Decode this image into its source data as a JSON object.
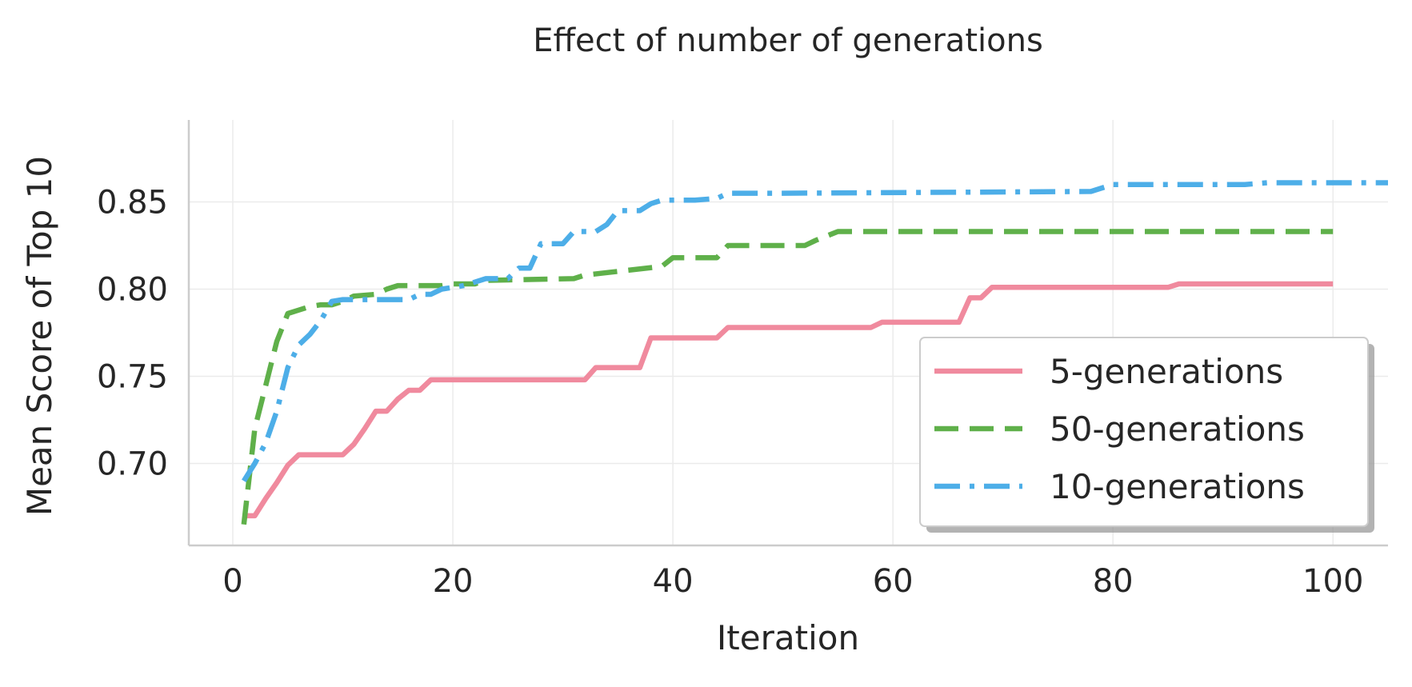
{
  "chart_data": {
    "type": "line",
    "title": "Effect of number of generations",
    "xlabel": "Iteration",
    "ylabel": "Mean Score of Top 10",
    "xlim": [
      -4,
      105
    ],
    "ylim": [
      0.653,
      0.897
    ],
    "xticks": [
      0,
      20,
      40,
      60,
      80,
      100
    ],
    "yticks": [
      0.7,
      0.75,
      0.8,
      0.85
    ],
    "xtick_labels": [
      "0",
      "20",
      "40",
      "60",
      "80",
      "100"
    ],
    "ytick_labels": [
      "0.70",
      "0.75",
      "0.80",
      "0.85"
    ],
    "grid": true,
    "legend_position": "lower-right",
    "series": [
      {
        "name": "5-generations",
        "color": "#f08a9e",
        "dash": "solid",
        "points": [
          [
            1,
            0.67
          ],
          [
            2,
            0.67
          ],
          [
            3,
            0.68
          ],
          [
            4,
            0.689
          ],
          [
            5,
            0.699
          ],
          [
            6,
            0.705
          ],
          [
            10,
            0.705
          ],
          [
            11,
            0.711
          ],
          [
            12,
            0.72
          ],
          [
            13,
            0.73
          ],
          [
            14,
            0.73
          ],
          [
            15,
            0.737
          ],
          [
            16,
            0.742
          ],
          [
            17,
            0.742
          ],
          [
            18,
            0.748
          ],
          [
            31,
            0.748
          ],
          [
            32,
            0.748
          ],
          [
            33,
            0.755
          ],
          [
            37,
            0.755
          ],
          [
            38,
            0.772
          ],
          [
            44,
            0.772
          ],
          [
            45,
            0.778
          ],
          [
            58,
            0.778
          ],
          [
            59,
            0.781
          ],
          [
            66,
            0.781
          ],
          [
            67,
            0.795
          ],
          [
            68,
            0.795
          ],
          [
            69,
            0.801
          ],
          [
            85,
            0.801
          ],
          [
            86,
            0.803
          ],
          [
            100,
            0.803
          ]
        ]
      },
      {
        "name": "50-generations",
        "color": "#5fb04a",
        "dash": "dashed",
        "points": [
          [
            1,
            0.665
          ],
          [
            2,
            0.72
          ],
          [
            3,
            0.745
          ],
          [
            4,
            0.77
          ],
          [
            5,
            0.786
          ],
          [
            6,
            0.788
          ],
          [
            7,
            0.79
          ],
          [
            8,
            0.791
          ],
          [
            9,
            0.791
          ],
          [
            10,
            0.793
          ],
          [
            11,
            0.796
          ],
          [
            13,
            0.797
          ],
          [
            14,
            0.8
          ],
          [
            15,
            0.802
          ],
          [
            19,
            0.802
          ],
          [
            20,
            0.803
          ],
          [
            22,
            0.803
          ],
          [
            23,
            0.805
          ],
          [
            31,
            0.806
          ],
          [
            32,
            0.808
          ],
          [
            39,
            0.813
          ],
          [
            40,
            0.818
          ],
          [
            44,
            0.818
          ],
          [
            45,
            0.825
          ],
          [
            52,
            0.825
          ],
          [
            53,
            0.828
          ],
          [
            55,
            0.833
          ],
          [
            99,
            0.833
          ],
          [
            100,
            0.833
          ]
        ]
      },
      {
        "name": "10-generations",
        "color": "#4daee8",
        "dash": "dashdot",
        "points": [
          [
            1,
            0.69
          ],
          [
            2,
            0.7
          ],
          [
            3,
            0.712
          ],
          [
            4,
            0.73
          ],
          [
            5,
            0.755
          ],
          [
            6,
            0.768
          ],
          [
            7,
            0.774
          ],
          [
            8,
            0.782
          ],
          [
            9,
            0.793
          ],
          [
            10,
            0.794
          ],
          [
            13,
            0.794
          ],
          [
            16,
            0.794
          ],
          [
            17,
            0.797
          ],
          [
            18,
            0.797
          ],
          [
            19,
            0.8
          ],
          [
            21,
            0.802
          ],
          [
            23,
            0.806
          ],
          [
            25,
            0.806
          ],
          [
            26,
            0.812
          ],
          [
            27,
            0.812
          ],
          [
            28,
            0.826
          ],
          [
            30,
            0.826
          ],
          [
            31,
            0.833
          ],
          [
            33,
            0.833
          ],
          [
            34,
            0.837
          ],
          [
            35,
            0.845
          ],
          [
            37,
            0.845
          ],
          [
            38,
            0.849
          ],
          [
            39,
            0.851
          ],
          [
            42,
            0.851
          ],
          [
            44,
            0.852
          ],
          [
            45,
            0.855
          ],
          [
            50,
            0.855
          ],
          [
            78,
            0.856
          ],
          [
            80,
            0.86
          ],
          [
            92,
            0.86
          ],
          [
            94,
            0.861
          ],
          [
            105,
            0.861
          ]
        ]
      }
    ]
  }
}
